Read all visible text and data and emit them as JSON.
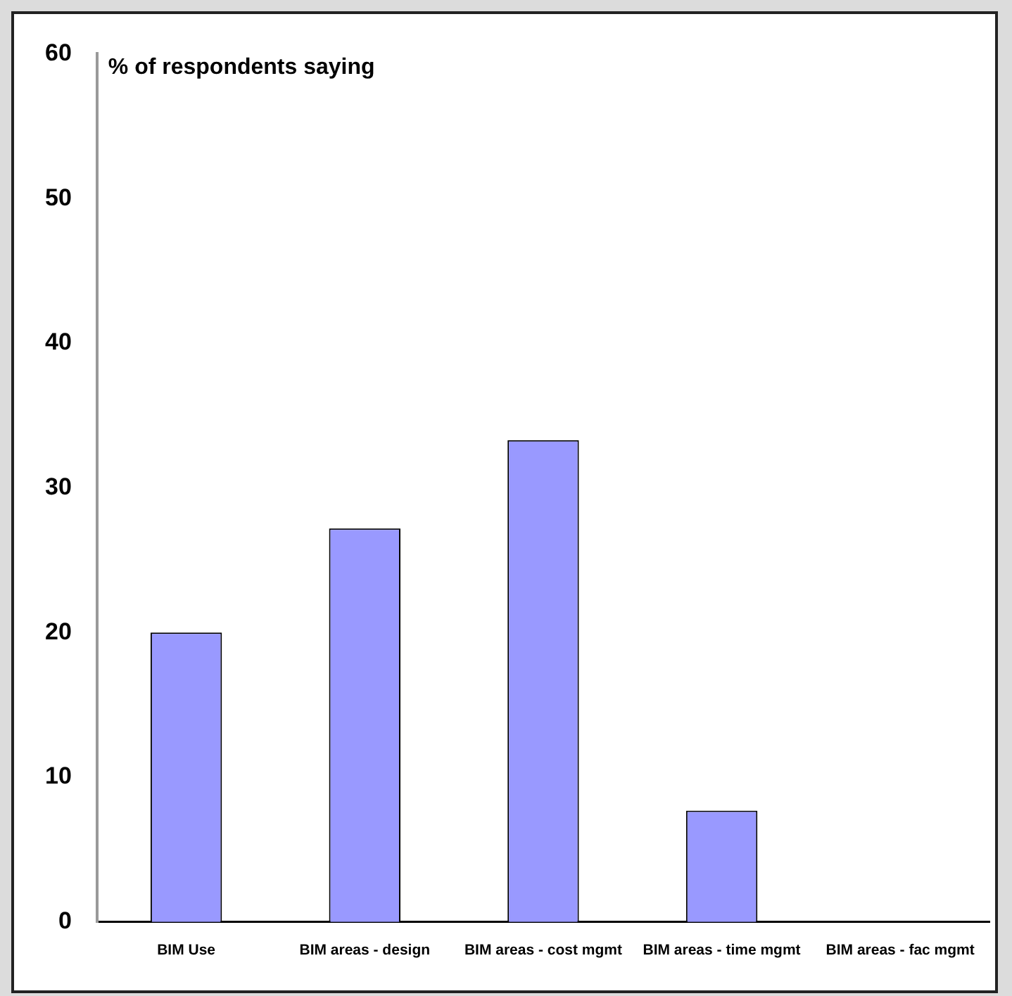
{
  "chart_data": {
    "type": "bar",
    "ylabel": "% of respondents saying",
    "categories": [
      "BIM Use",
      "BIM areas - design",
      "BIM areas - cost mgmt",
      "BIM areas - time mgmt",
      "BIM areas - fac mgmt"
    ],
    "values": [
      20,
      27.2,
      33.3,
      7.7,
      0
    ],
    "color": "#9999ff",
    "ylim": [
      0,
      60
    ],
    "yticks": [
      0,
      10,
      20,
      30,
      40,
      50,
      60
    ],
    "grid": false,
    "legend": false
  }
}
